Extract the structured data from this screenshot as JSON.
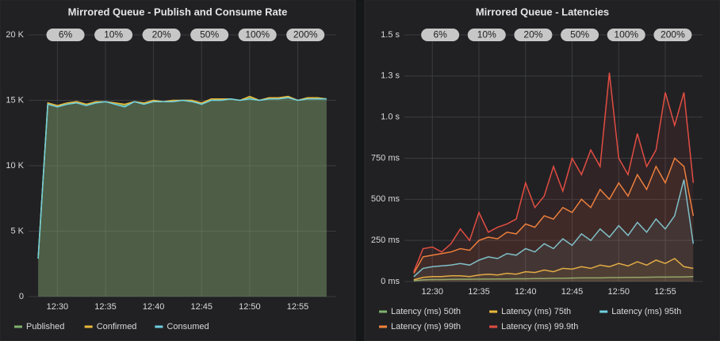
{
  "chart_data": [
    {
      "type": "line",
      "title": "Mirrored Queue - Publish and Consume Rate",
      "x": [
        "12:28",
        "12:29",
        "12:30",
        "12:31",
        "12:32",
        "12:33",
        "12:34",
        "12:35",
        "12:36",
        "12:37",
        "12:38",
        "12:39",
        "12:40",
        "12:41",
        "12:42",
        "12:43",
        "12:44",
        "12:45",
        "12:46",
        "12:47",
        "12:48",
        "12:49",
        "12:50",
        "12:51",
        "12:52",
        "12:53",
        "12:54",
        "12:55",
        "12:56",
        "12:57",
        "12:58"
      ],
      "xlim": [
        "12:27",
        "12:59"
      ],
      "xticks": [
        "12:30",
        "12:35",
        "12:40",
        "12:45",
        "12:50",
        "12:55"
      ],
      "ylim": [
        0,
        20000
      ],
      "yticks": [
        0,
        {
          "value": 5000,
          "label": "5 K"
        },
        {
          "value": 10000,
          "label": "10 K"
        },
        {
          "value": 15000,
          "label": "15 K"
        },
        {
          "value": 20000,
          "label": "20 K"
        }
      ],
      "grid": true,
      "fill": true,
      "legend": "bottom",
      "annotations": [
        "6%",
        "10%",
        "20%",
        "50%",
        "100%",
        "200%"
      ],
      "series": [
        {
          "name": "Published",
          "color": "#7eb26d",
          "values": [
            2900,
            14800,
            14600,
            14700,
            14900,
            14700,
            14800,
            14900,
            14800,
            14600,
            14900,
            14700,
            15000,
            14900,
            14900,
            15000,
            15000,
            14700,
            15100,
            15000,
            15100,
            15000,
            15200,
            15000,
            15100,
            15200,
            15200,
            15000,
            15100,
            15200,
            15100
          ]
        },
        {
          "name": "Confirmed",
          "color": "#eab839",
          "values": [
            2900,
            14800,
            14600,
            14800,
            14900,
            14700,
            14900,
            14900,
            14800,
            14700,
            14900,
            14800,
            15000,
            14900,
            15000,
            15000,
            15000,
            14800,
            15100,
            15100,
            15100,
            15000,
            15300,
            15000,
            15200,
            15200,
            15300,
            15000,
            15200,
            15200,
            15100
          ]
        },
        {
          "name": "Consumed",
          "color": "#6ed0e0",
          "values": [
            2900,
            14700,
            14500,
            14700,
            14800,
            14600,
            14800,
            14900,
            14700,
            14500,
            14900,
            14700,
            14900,
            14900,
            14900,
            15000,
            14900,
            14700,
            15000,
            15000,
            15100,
            15000,
            15100,
            15000,
            15100,
            15100,
            15200,
            15000,
            15100,
            15100,
            15100
          ]
        }
      ]
    },
    {
      "type": "line",
      "title": "Mirrored Queue - Latencies",
      "x": [
        "12:28",
        "12:29",
        "12:30",
        "12:31",
        "12:32",
        "12:33",
        "12:34",
        "12:35",
        "12:36",
        "12:37",
        "12:38",
        "12:39",
        "12:40",
        "12:41",
        "12:42",
        "12:43",
        "12:44",
        "12:45",
        "12:46",
        "12:47",
        "12:48",
        "12:49",
        "12:50",
        "12:51",
        "12:52",
        "12:53",
        "12:54",
        "12:55",
        "12:56",
        "12:57",
        "12:58"
      ],
      "xlim": [
        "12:27",
        "12:59"
      ],
      "xticks": [
        "12:30",
        "12:35",
        "12:40",
        "12:45",
        "12:50",
        "12:55"
      ],
      "ylim": [
        0,
        1500
      ],
      "yticks": [
        {
          "value": 0,
          "label": "0 ms"
        },
        {
          "value": 250,
          "label": "250 ms"
        },
        {
          "value": 500,
          "label": "500 ms"
        },
        {
          "value": 750,
          "label": "750 ms"
        },
        {
          "value": 1000,
          "label": "1.0 s"
        },
        {
          "value": 1250,
          "label": "1.3 s"
        },
        {
          "value": 1500,
          "label": "1.5 s"
        }
      ],
      "grid": true,
      "fill": true,
      "legend": "bottom",
      "annotations": [
        "6%",
        "10%",
        "20%",
        "50%",
        "100%",
        "200%"
      ],
      "series": [
        {
          "name": "Latency (ms) 50th",
          "color": "#7eb26d",
          "values": [
            5,
            10,
            12,
            12,
            13,
            14,
            14,
            15,
            15,
            16,
            16,
            17,
            17,
            18,
            18,
            20,
            20,
            21,
            22,
            22,
            22,
            24,
            24,
            25,
            25,
            26,
            27,
            27,
            28,
            28,
            30
          ]
        },
        {
          "name": "Latency (ms) 75th",
          "color": "#eab839",
          "values": [
            10,
            25,
            30,
            30,
            35,
            35,
            30,
            40,
            45,
            40,
            50,
            45,
            60,
            55,
            70,
            60,
            80,
            75,
            90,
            80,
            100,
            90,
            110,
            95,
            120,
            100,
            130,
            110,
            140,
            90,
            80
          ]
        },
        {
          "name": "Latency (ms) 95th",
          "color": "#6ed0e0",
          "values": [
            30,
            80,
            90,
            95,
            100,
            110,
            100,
            130,
            150,
            140,
            170,
            160,
            200,
            180,
            230,
            200,
            260,
            220,
            290,
            250,
            320,
            270,
            340,
            280,
            360,
            300,
            380,
            320,
            400,
            620,
            230
          ]
        },
        {
          "name": "Latency (ms) 99th",
          "color": "#ef843c",
          "values": [
            50,
            150,
            160,
            170,
            180,
            200,
            190,
            250,
            270,
            260,
            300,
            290,
            350,
            330,
            400,
            380,
            450,
            420,
            500,
            450,
            560,
            500,
            600,
            520,
            650,
            560,
            700,
            600,
            750,
            700,
            400
          ]
        },
        {
          "name": "Latency (ms) 99.9th",
          "color": "#e24d42",
          "values": [
            60,
            200,
            210,
            180,
            230,
            320,
            250,
            420,
            300,
            330,
            350,
            380,
            600,
            450,
            520,
            700,
            550,
            750,
            650,
            800,
            700,
            1270,
            750,
            650,
            900,
            700,
            800,
            1150,
            950,
            1150,
            600
          ]
        }
      ]
    }
  ]
}
